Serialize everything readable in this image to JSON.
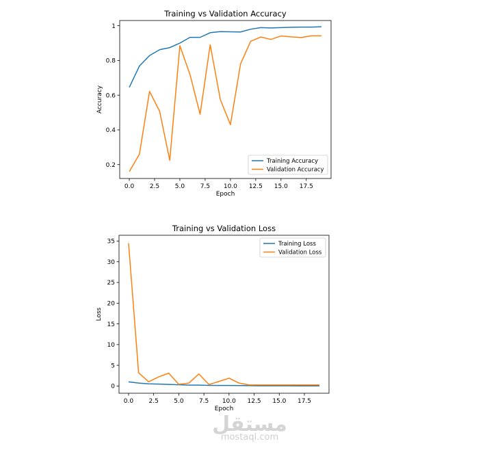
{
  "chart_data": [
    {
      "type": "line",
      "title": "Training vs Validation Accuracy",
      "xlabel": "Epoch",
      "ylabel": "Accuracy",
      "xlim": [
        -0.95,
        19.95
      ],
      "ylim": [
        0.12,
        1.03
      ],
      "xticks": [
        0.0,
        2.5,
        5.0,
        7.5,
        10.0,
        12.5,
        15.0,
        17.5
      ],
      "yticks": [
        0.2,
        0.4,
        0.6,
        0.8,
        1.0
      ],
      "grid": false,
      "legend_position": "lower-right",
      "x": [
        0,
        1,
        2,
        3,
        4,
        5,
        6,
        7,
        8,
        9,
        10,
        11,
        12,
        13,
        14,
        15,
        16,
        17,
        18,
        19
      ],
      "series": [
        {
          "name": "Training Accuracy",
          "color": "#1f77b4",
          "values": [
            0.645,
            0.768,
            0.828,
            0.862,
            0.874,
            0.9,
            0.933,
            0.933,
            0.96,
            0.966,
            0.965,
            0.964,
            0.98,
            0.989,
            0.987,
            0.989,
            0.991,
            0.992,
            0.992,
            0.994
          ]
        },
        {
          "name": "Validation Accuracy",
          "color": "#ff7f0e",
          "values": [
            0.16,
            0.26,
            0.622,
            0.507,
            0.225,
            0.885,
            0.719,
            0.49,
            0.89,
            0.575,
            0.43,
            0.78,
            0.91,
            0.935,
            0.921,
            0.941,
            0.936,
            0.932,
            0.942,
            0.942
          ]
        }
      ]
    },
    {
      "type": "line",
      "title": "Training vs Validation Loss",
      "xlabel": "Epoch",
      "ylabel": "Loss",
      "xlim": [
        -0.95,
        19.95
      ],
      "ylim": [
        -1.75,
        36.4
      ],
      "xticks": [
        0.0,
        2.5,
        5.0,
        7.5,
        10.0,
        12.5,
        15.0,
        17.5
      ],
      "yticks": [
        0,
        5,
        10,
        15,
        20,
        25,
        30,
        35
      ],
      "grid": false,
      "legend_position": "upper-right",
      "x": [
        0,
        1,
        2,
        3,
        4,
        5,
        6,
        7,
        8,
        9,
        10,
        11,
        12,
        13,
        14,
        15,
        16,
        17,
        18,
        19
      ],
      "series": [
        {
          "name": "Training Loss",
          "color": "#1f77b4",
          "values": [
            1.0,
            0.7,
            0.52,
            0.45,
            0.38,
            0.3,
            0.22,
            0.21,
            0.15,
            0.12,
            0.12,
            0.11,
            0.08,
            0.05,
            0.05,
            0.04,
            0.04,
            0.03,
            0.03,
            0.03
          ]
        },
        {
          "name": "Validation Loss",
          "color": "#ff7f0e",
          "values": [
            34.5,
            3.2,
            1.0,
            2.2,
            3.1,
            0.4,
            0.7,
            2.9,
            0.35,
            1.1,
            1.9,
            0.7,
            0.25,
            0.25,
            0.25,
            0.25,
            0.25,
            0.25,
            0.25,
            0.25
          ]
        }
      ]
    }
  ],
  "watermark": {
    "arabic": "مستقل",
    "latin": "mostaql.com"
  }
}
